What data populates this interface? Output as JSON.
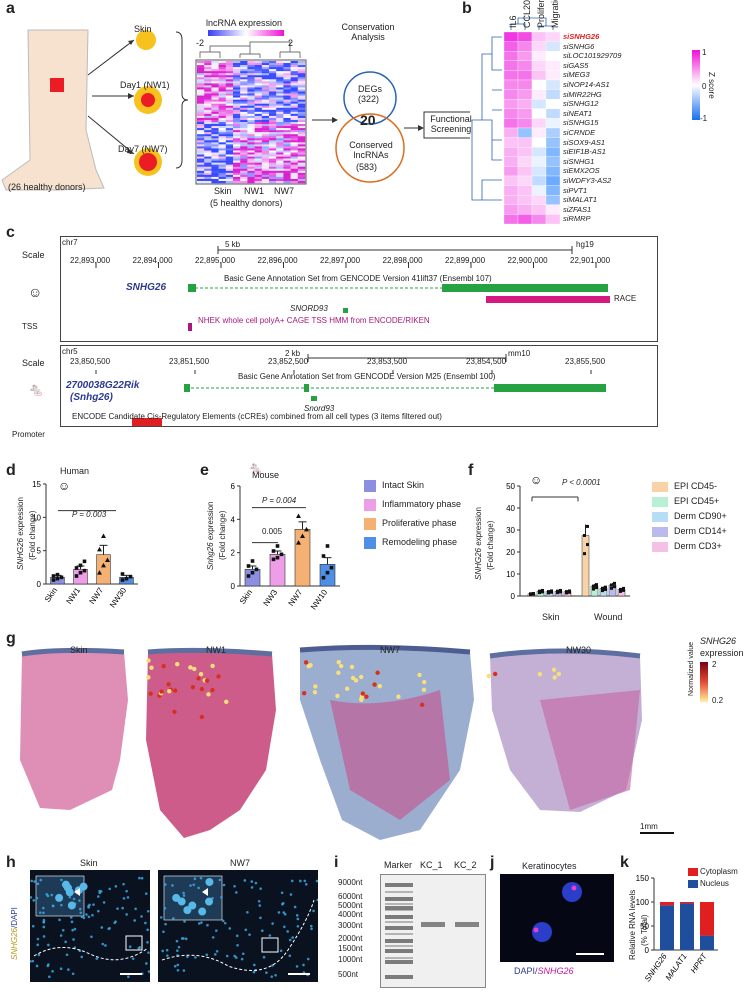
{
  "panels": {
    "a": "a",
    "b": "b",
    "c": "c",
    "d": "d",
    "e": "e",
    "f": "f",
    "g": "g",
    "h": "h",
    "i": "i",
    "j": "j",
    "k": "k"
  },
  "panel_a": {
    "donors": "(26 healthy donors)",
    "skin": "Skin",
    "day1": "Day1 (NW1)",
    "day7": "Day7 (NW7)",
    "heatmap_title": "lncRNA expression",
    "scale_min": "-2",
    "scale_max": "2",
    "col_skin": "Skin",
    "col_nw1": "NW1",
    "col_nw7": "NW7",
    "donors5": "(5 healthy donors)",
    "conservation": "Conservation Analysis",
    "degs": "DEGs",
    "degs_n": "(322)",
    "overlap": "20",
    "conserved": "Conserved lncRNAs",
    "conserved_n": "(583)",
    "functional": "Functional Screening"
  },
  "panel_b": {
    "columns": [
      "IL6",
      "CCL20",
      "Proliferation",
      "Migration"
    ],
    "rows": [
      "siSNHG26",
      "siSNHG6",
      "siLOC101929709",
      "siGAS5",
      "siMEG3",
      "siNOP14-AS1",
      "siMIR22HG",
      "siSNHG12",
      "siNEAT1",
      "siSNHG15",
      "siCRNDE",
      "siSOX9-AS1",
      "siEIF1B-AS1",
      "siSNHG1",
      "siEMX2OS",
      "siWDFY3-AS2",
      "siPVT1",
      "siMALAT1",
      "siZFAS1",
      "siRMRP"
    ],
    "zscore_label": "Z score",
    "scale_ticks": [
      "1",
      "0",
      "-1"
    ]
  },
  "panel_c": {
    "human": {
      "chr": "chr7",
      "scale": "Scale",
      "scalebar": "5 kb",
      "build": "hg19",
      "ticks": [
        "22,893,000",
        "22,894,000",
        "22,895,000",
        "22,896,000",
        "22,897,000",
        "22,898,000",
        "22,899,000",
        "22,900,000",
        "22,901,000"
      ],
      "annotation": "Basic Gene Annotation Set from GENCODE Version 41lift37 (Ensembl 107)",
      "gene": "SNHG26",
      "snord": "SNORD93",
      "race": "RACE",
      "tss_label": "TSS",
      "tss_track": "NHEK whole cell polyA+ CAGE TSS HMM from ENCODE/RIKEN"
    },
    "mouse": {
      "chr": "chr5",
      "scale": "Scale",
      "scalebar": "2 kb",
      "build": "mm10",
      "ticks": [
        "23,850,500",
        "23,851,500",
        "23,852,500",
        "23,853,500",
        "23,854,500",
        "23,855,500"
      ],
      "annotation": "Basic Gene Annotation Set from GENCODE Version M25 (Ensembl 100)",
      "gene": "2700038G22Rik",
      "gene_alias": "(Snhg26)",
      "snord": "Snord93",
      "promoter_label": "Promoter",
      "ccre": "ENCODE Candidate Cis-Regulatory Elements (cCREs) combined from all cell types (3 items filtered out)"
    }
  },
  "panel_d": {
    "title": "Human",
    "ylabel_gene": "SNHG26",
    "ylabel_rest": " expression",
    "ylabel2": "(Fold change)",
    "pval": "P = 0.003"
  },
  "panel_e": {
    "title": "Mouse",
    "ylabel_gene": "Snhg26",
    "ylabel_rest": " expression",
    "ylabel2": "(Fold change)",
    "p1": "0.005",
    "p2": "P = 0.004",
    "legend": [
      "Intact Skin",
      "Inflammatory phase",
      "Proliferative phase",
      "Remodeling phase"
    ]
  },
  "panel_f": {
    "ylabel_gene": "SNHG26",
    "ylabel_rest": " expression",
    "ylabel2": "(Fold change)",
    "pval": "P < 0.0001",
    "groups": [
      "Skin",
      "Wound"
    ],
    "legend": [
      "EPI CD45-",
      "EPI CD45+",
      "Derm CD90+",
      "Derm CD14+",
      "Derm CD3+"
    ]
  },
  "panel_g": {
    "sections": [
      "Skin",
      "NW1",
      "NW7",
      "NW30"
    ],
    "legend_title_gene": "SNHG26",
    "legend_title_rest": "expression",
    "legend_max": "2",
    "legend_min": "0.2",
    "legend_sub": "Normalized value",
    "scalebar": "1mm"
  },
  "panel_h": {
    "skin": "Skin",
    "nw7": "NW7",
    "side_gene": "SNHG26",
    "side_rest": "/DAPI"
  },
  "panel_i": {
    "lanes": [
      "Marker",
      "KC_1",
      "KC_2"
    ],
    "sizes": [
      "9000nt",
      "6000nt",
      "5000nt",
      "4000nt",
      "3000nt",
      "2000nt",
      "1500nt",
      "1000nt",
      "500nt"
    ]
  },
  "panel_j": {
    "title": "Keratinocytes",
    "label_dapi": "DAPI/",
    "label_gene": "SNHG26"
  },
  "panel_k": {
    "ylabel": "Relative RNA levels",
    "ylabel2": "(% Total)",
    "legend": [
      "Cytoplasm",
      "Nucleus"
    ]
  },
  "colors": {
    "skin": "#8c8fe0",
    "inflammatory": "#ee9ee6",
    "proliferative": "#f4b173",
    "remodeling": "#4f8fe6",
    "epi45neg": "#f9d3a8",
    "epi45pos": "#b7f0d2",
    "derm90": "#b7ddf4",
    "derm14": "#bcb9ef",
    "derm3": "#f6bfe4",
    "cytoplasm": "#e02020",
    "nucleus": "#1f4e9c",
    "ucsc_green": "#27a243",
    "race": "#d6197e"
  },
  "chart_data": [
    {
      "id": "d",
      "type": "bar",
      "title": "Human",
      "ylabel": "SNHG26 expression (Fold change)",
      "categories": [
        "Skin",
        "NW1",
        "NW7",
        "NW30"
      ],
      "values": [
        1.0,
        2.2,
        4.4,
        1.0
      ],
      "errors": [
        0.3,
        0.5,
        1.4,
        0.3
      ],
      "points": [
        [
          0.6,
          0.8,
          1.0,
          1.2,
          1.4
        ],
        [
          1.2,
          1.7,
          2.0,
          2.4,
          2.8,
          3.4
        ],
        [
          1.7,
          2.8,
          3.6,
          5.2,
          7.2
        ],
        [
          0.6,
          0.8,
          1.1,
          1.5
        ]
      ],
      "ylim": [
        0,
        15
      ],
      "yticks": [
        0,
        5,
        10,
        15
      ]
    },
    {
      "id": "e",
      "type": "bar",
      "title": "Mouse",
      "ylabel": "Snhg26 expression (Fold change)",
      "categories": [
        "Skin",
        "NW3",
        "NW7",
        "NW10"
      ],
      "values": [
        1.0,
        1.9,
        3.4,
        1.3
      ],
      "errors": [
        0.2,
        0.2,
        0.45,
        0.4
      ],
      "points": [
        [
          0.6,
          0.8,
          1.0,
          1.2,
          1.5
        ],
        [
          1.6,
          1.7,
          1.9,
          2.1,
          2.4
        ],
        [
          2.6,
          3.0,
          3.4,
          4.2
        ],
        [
          0.5,
          0.8,
          1.1,
          1.8,
          2.4
        ]
      ],
      "ylim": [
        0,
        6
      ],
      "yticks": [
        0,
        2,
        4,
        6
      ]
    },
    {
      "id": "f",
      "type": "bar",
      "ylabel": "SNHG26 expression (Fold change)",
      "categories": [
        "Skin",
        "Wound"
      ],
      "series": [
        {
          "name": "EPI CD45-",
          "values": [
            1.0,
            27.5
          ]
        },
        {
          "name": "EPI CD45+",
          "values": [
            2.2,
            4.5
          ]
        },
        {
          "name": "Derm CD90+",
          "values": [
            2.0,
            3.5
          ]
        },
        {
          "name": "Derm CD14+",
          "values": [
            2.2,
            5.0
          ]
        },
        {
          "name": "Derm CD3+",
          "values": [
            2.0,
            3.0
          ]
        }
      ],
      "errors": [
        [
          0.3,
          5.0
        ],
        [
          0.6,
          1.0
        ],
        [
          0.5,
          0.8
        ],
        [
          0.5,
          0.9
        ],
        [
          0.4,
          0.6
        ]
      ],
      "ylim": [
        0,
        50
      ],
      "yticks": [
        0,
        10,
        20,
        30,
        40,
        50
      ]
    },
    {
      "id": "k",
      "type": "bar",
      "ylabel": "Relative RNA levels (% Total)",
      "categories": [
        "SNHG26",
        "MALAT1",
        "HPRT"
      ],
      "series": [
        {
          "name": "Nucleus",
          "values": [
            93,
            97,
            30
          ]
        },
        {
          "name": "Cytoplasm",
          "values": [
            7,
            3,
            70
          ]
        }
      ],
      "ylim": [
        0,
        150
      ],
      "yticks": [
        0,
        50,
        100,
        150
      ]
    }
  ]
}
